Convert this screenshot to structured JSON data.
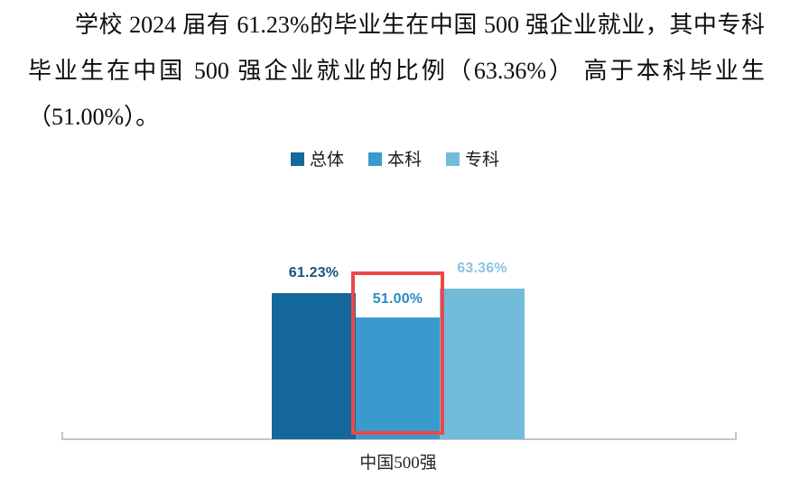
{
  "document": {
    "paragraph_lines": [
      "学校 2024 届有 61.23%的毕业生在中国 500 强企业就业，其中专科",
      "毕业生在中国 500 强企业就业的比例（63.36%） 高于本科毕业生",
      "（51.00%）。"
    ]
  },
  "chart_data": {
    "type": "bar",
    "title": "",
    "categories": [
      "中国500强"
    ],
    "series": [
      {
        "name": "总体",
        "values": [
          61.23
        ],
        "data_label": "61.23%",
        "color": "#15689c",
        "label_color": "#17537f"
      },
      {
        "name": "本科",
        "values": [
          51.0
        ],
        "data_label": "51.00%",
        "color": "#399bcd",
        "label_color": "#2e8bc4"
      },
      {
        "name": "专科",
        "values": [
          63.36
        ],
        "data_label": "63.36%",
        "color": "#72bcd9",
        "label_color": "#8cc3e1"
      }
    ],
    "xlabel": "",
    "ylabel": "",
    "ylim": [
      0,
      70
    ],
    "grid": false,
    "legend_position": "top",
    "data_labels": true,
    "highlight": {
      "series": "本科",
      "border_color": "#ee4747"
    }
  },
  "colors": {
    "axis": "#c6c6c6",
    "paragraph_text": "#0d0d0d",
    "category_label": "#262626",
    "background": "#ffffff"
  }
}
